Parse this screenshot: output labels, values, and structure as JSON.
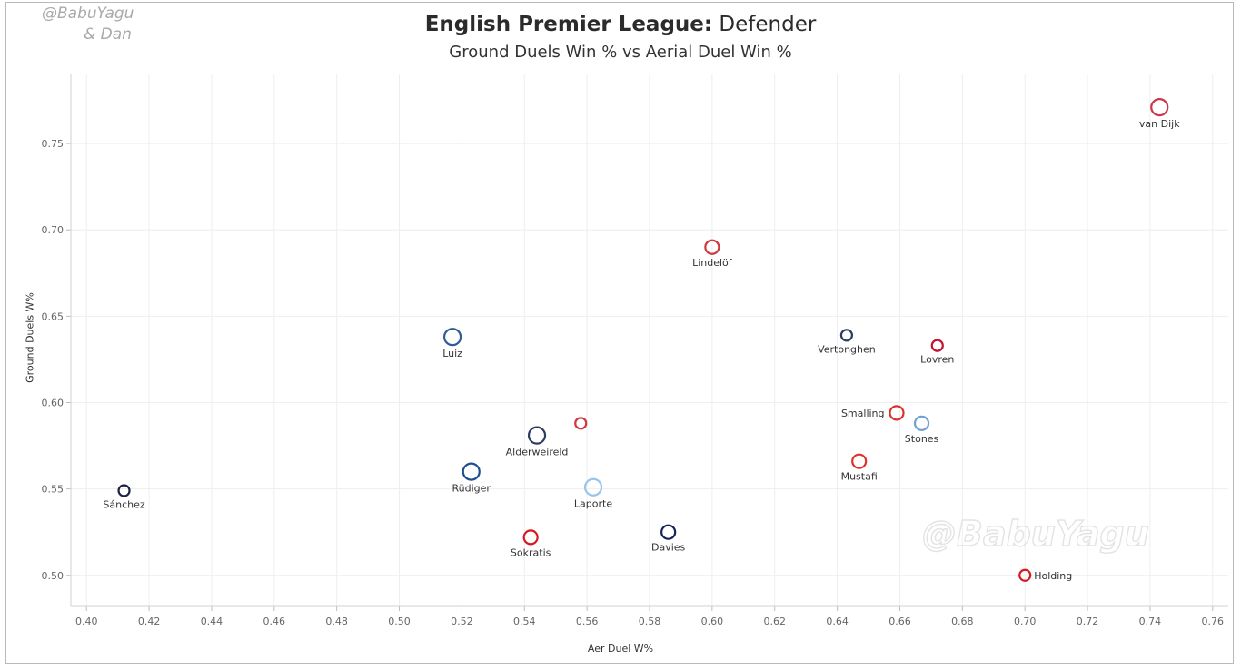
{
  "credit": {
    "line1": "@BabuYagu",
    "line2": "& Dan"
  },
  "header": {
    "title_bold": "English Premier League:",
    "title_rest": " Defender",
    "subtitle": "Ground Duels Win % vs Aerial Duel Win %"
  },
  "watermark": "@BabuYagu",
  "chart_data": {
    "type": "scatter",
    "title": "English Premier League: Defender",
    "subtitle": "Ground Duels Win % vs Aerial Duel Win %",
    "xlabel": "Aer Duel W%",
    "ylabel": "Ground Duels W%",
    "xlim": [
      0.395,
      0.765
    ],
    "ylim": [
      0.482,
      0.79
    ],
    "xticks": [
      "0.40",
      "0.42",
      "0.44",
      "0.46",
      "0.48",
      "0.50",
      "0.52",
      "0.54",
      "0.56",
      "0.58",
      "0.60",
      "0.62",
      "0.64",
      "0.66",
      "0.68",
      "0.70",
      "0.72",
      "0.74",
      "0.76"
    ],
    "yticks": [
      "0.50",
      "0.55",
      "0.60",
      "0.65",
      "0.70",
      "0.75"
    ],
    "grid": true,
    "points": [
      {
        "name": "van Dijk",
        "x": 0.743,
        "y": 0.771,
        "color": "#c8374a",
        "size": "large",
        "label_pos": "below"
      },
      {
        "name": "Lindelöf",
        "x": 0.6,
        "y": 0.69,
        "color": "#cf3a3e",
        "size": "medium",
        "label_pos": "below"
      },
      {
        "name": "Luiz",
        "x": 0.517,
        "y": 0.638,
        "color": "#2f5b99",
        "size": "large",
        "label_pos": "below"
      },
      {
        "name": "Vertonghen",
        "x": 0.643,
        "y": 0.639,
        "color": "#2e3d5f",
        "size": "small",
        "label_pos": "below"
      },
      {
        "name": "Lovren",
        "x": 0.672,
        "y": 0.633,
        "color": "#c4122f",
        "size": "small",
        "label_pos": "below"
      },
      {
        "name": "Smalling",
        "x": 0.659,
        "y": 0.594,
        "color": "#d8352a",
        "size": "medium",
        "label_pos": "left"
      },
      {
        "name": "Stones",
        "x": 0.667,
        "y": 0.588,
        "color": "#6ca0d6",
        "size": "medium",
        "label_pos": "below"
      },
      {
        "name": "Alderweireld",
        "x": 0.544,
        "y": 0.581,
        "color": "#2e3d5f",
        "size": "large",
        "label_pos": "below"
      },
      {
        "name": "",
        "x": 0.558,
        "y": 0.588,
        "color": "#cf3a3e",
        "size": "small",
        "label_pos": "none"
      },
      {
        "name": "Mustafi",
        "x": 0.647,
        "y": 0.566,
        "color": "#e0312d",
        "size": "medium",
        "label_pos": "below"
      },
      {
        "name": "Rüdiger",
        "x": 0.523,
        "y": 0.56,
        "color": "#1d4f91",
        "size": "large",
        "label_pos": "below"
      },
      {
        "name": "Laporte",
        "x": 0.562,
        "y": 0.551,
        "color": "#98c5e9",
        "size": "large",
        "label_pos": "below"
      },
      {
        "name": "Sánchez",
        "x": 0.412,
        "y": 0.549,
        "color": "#1b2346",
        "size": "small",
        "label_pos": "below"
      },
      {
        "name": "Sokratis",
        "x": 0.542,
        "y": 0.522,
        "color": "#d71920",
        "size": "medium",
        "label_pos": "below"
      },
      {
        "name": "Davies",
        "x": 0.586,
        "y": 0.525,
        "color": "#132257",
        "size": "medium",
        "label_pos": "below"
      },
      {
        "name": "Holding",
        "x": 0.7,
        "y": 0.5,
        "color": "#d71920",
        "size": "small",
        "label_pos": "right"
      }
    ]
  }
}
